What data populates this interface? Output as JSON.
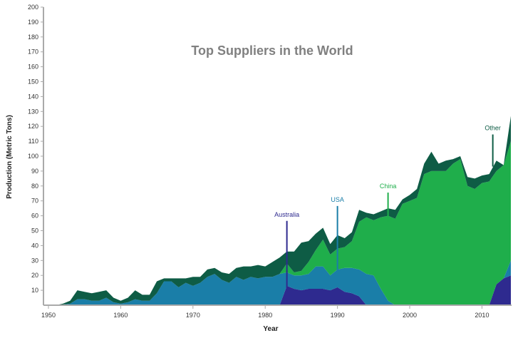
{
  "chart_data": {
    "type": "area",
    "stacked": true,
    "title": "Top Suppliers in the World",
    "xlabel": "Year",
    "ylabel": "Production (Metric Tons)",
    "xlim": [
      1950,
      2014
    ],
    "ylim": [
      0,
      200
    ],
    "x_ticks": [
      1950,
      1960,
      1970,
      1980,
      1990,
      2000,
      2010
    ],
    "y_ticks": [
      10,
      20,
      30,
      40,
      50,
      60,
      70,
      80,
      90,
      100,
      110,
      120,
      130,
      140,
      150,
      160,
      170,
      180,
      190,
      200
    ],
    "y_tick_labels": [
      "10",
      "20",
      "30",
      "40",
      "50",
      "60",
      "70",
      "80",
      "90",
      "100",
      "110",
      "120",
      "130",
      "140",
      "150",
      "160",
      "170",
      "180",
      "190",
      "200"
    ],
    "x_tick_labels": [
      "1950",
      "1960",
      "1970",
      "1980",
      "1990",
      "2000",
      "2010"
    ],
    "grid": false,
    "x": [
      1951,
      1952,
      1953,
      1954,
      1955,
      1956,
      1957,
      1958,
      1959,
      1960,
      1961,
      1962,
      1963,
      1964,
      1965,
      1966,
      1967,
      1968,
      1969,
      1970,
      1971,
      1972,
      1973,
      1974,
      1975,
      1976,
      1977,
      1978,
      1979,
      1980,
      1981,
      1982,
      1983,
      1984,
      1985,
      1986,
      1987,
      1988,
      1989,
      1990,
      1991,
      1992,
      1993,
      1994,
      1995,
      1996,
      1997,
      1998,
      1999,
      2000,
      2001,
      2002,
      2003,
      2004,
      2005,
      2006,
      2007,
      2008,
      2009,
      2010,
      2011,
      2012,
      2013,
      2014
    ],
    "series": [
      {
        "name": "Australia",
        "color": "#2e2a8f",
        "values": [
          0,
          0,
          0,
          0,
          0,
          0,
          0,
          0,
          0,
          0,
          0,
          0,
          0,
          0,
          0,
          0,
          0,
          0,
          0,
          0,
          0,
          0,
          0,
          0,
          0,
          0,
          0,
          0,
          0,
          0,
          0,
          0,
          13,
          11,
          10,
          11,
          11,
          11,
          10,
          12,
          9,
          8,
          6,
          0,
          0,
          0,
          0,
          0,
          0,
          0,
          0,
          0,
          0,
          0,
          0,
          0,
          0,
          0,
          0,
          0,
          0,
          14,
          18,
          20
        ]
      },
      {
        "name": "USA",
        "color": "#1a7ea8",
        "values": [
          0,
          0.5,
          1,
          4,
          4,
          3,
          3,
          5,
          2,
          1,
          2,
          4,
          3,
          3,
          8,
          16,
          16,
          12,
          15,
          13,
          15,
          19,
          21,
          17,
          15,
          19,
          17,
          19,
          18,
          19,
          19,
          21,
          9,
          9,
          10,
          10,
          15,
          15,
          10,
          12,
          16,
          17,
          18,
          21,
          20,
          11,
          3,
          0,
          0,
          0,
          0,
          0,
          0,
          0,
          0,
          0,
          0,
          0,
          0,
          0,
          0,
          0,
          0,
          10
        ]
      },
      {
        "name": "China",
        "color": "#1fae4b",
        "values": [
          0,
          0,
          0,
          0,
          0,
          0,
          0,
          0,
          0,
          0,
          0,
          0,
          0,
          0,
          0,
          0,
          0,
          0,
          0,
          0,
          0,
          0,
          0,
          0,
          0,
          0,
          0,
          0,
          0,
          0,
          0,
          0,
          6,
          2,
          3,
          8,
          11,
          18,
          14,
          14,
          14,
          18,
          32,
          38,
          37,
          48,
          57,
          58,
          68,
          70,
          72,
          88,
          90,
          90,
          90,
          95,
          98,
          80,
          78,
          82,
          83,
          76,
          76,
          80
        ]
      },
      {
        "name": "Other",
        "color": "#0e5c45",
        "values": [
          0,
          0.5,
          2,
          6,
          5,
          5,
          6,
          5,
          3,
          2,
          3,
          6,
          4,
          4,
          8,
          2,
          2,
          6,
          3,
          6,
          4,
          5,
          4,
          5,
          6,
          6,
          9,
          7,
          9,
          7,
          10,
          11,
          8,
          14,
          19,
          14,
          11,
          8,
          7,
          9,
          6,
          6,
          8,
          3,
          4,
          4,
          5,
          6,
          3,
          4,
          6,
          7,
          13,
          5,
          7,
          3,
          2,
          6,
          7,
          5,
          5,
          7,
          0,
          17
        ]
      }
    ],
    "annotations": [
      {
        "text": "Australia",
        "color": "#2e2a8f",
        "x": 1983,
        "y": 58
      },
      {
        "text": "USA",
        "color": "#1a7ea8",
        "x": 1990,
        "y": 68
      },
      {
        "text": "China",
        "color": "#1fae4b",
        "x": 1997,
        "y": 77
      },
      {
        "text": "Other",
        "color": "#0e5c45",
        "x": 2011.5,
        "y": 116
      }
    ]
  }
}
